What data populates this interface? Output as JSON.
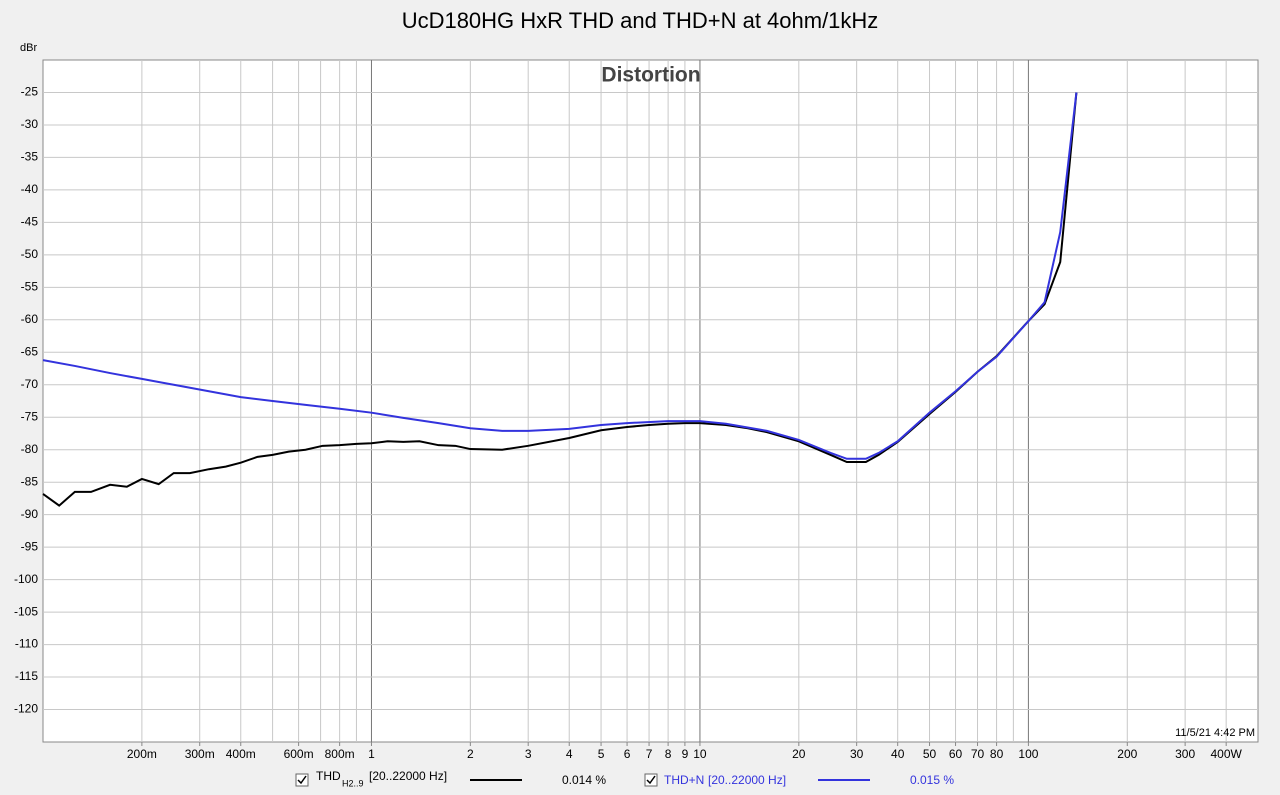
{
  "chart_data": {
    "type": "line",
    "title": "UcD180HG HxR THD and THD+N at 4ohm/1kHz",
    "plot_title": "Distortion",
    "ylabel": "dBr",
    "timestamp": "11/5/21 4:42 PM",
    "xscale": "log",
    "xlim": [
      0.1,
      500
    ],
    "ylim": [
      -125,
      -20
    ],
    "yticks": [
      -120,
      -115,
      -110,
      -105,
      -100,
      -95,
      -90,
      -85,
      -80,
      -75,
      -70,
      -65,
      -60,
      -55,
      -50,
      -45,
      -40,
      -35,
      -30,
      -25
    ],
    "xticks": [
      {
        "value": 0.2,
        "label": "200m"
      },
      {
        "value": 0.3,
        "label": "300m"
      },
      {
        "value": 0.4,
        "label": "400m"
      },
      {
        "value": 0.6,
        "label": "600m"
      },
      {
        "value": 0.8,
        "label": "800m"
      },
      1,
      2,
      3,
      4,
      5,
      6,
      7,
      8,
      9,
      10,
      20,
      30,
      40,
      50,
      60,
      70,
      80,
      100,
      200,
      300,
      {
        "value": 400,
        "label": "400W"
      }
    ],
    "xgrid": [
      0.2,
      0.3,
      0.4,
      0.5,
      0.6,
      0.7,
      0.8,
      0.9,
      1,
      2,
      3,
      4,
      5,
      6,
      7,
      8,
      9,
      10,
      20,
      30,
      40,
      50,
      60,
      70,
      80,
      90,
      100,
      200,
      300,
      400
    ],
    "grid": true,
    "series": [
      {
        "name": "THD",
        "name_sub": "H2..9",
        "band": "[20..22000 Hz]",
        "readout": "0.014 %",
        "color": "#000000",
        "x": [
          0.1,
          0.112,
          0.125,
          0.14,
          0.16,
          0.18,
          0.2,
          0.225,
          0.25,
          0.28,
          0.32,
          0.36,
          0.4,
          0.45,
          0.5,
          0.56,
          0.63,
          0.71,
          0.8,
          0.9,
          1,
          1.12,
          1.25,
          1.4,
          1.6,
          1.8,
          2,
          2.5,
          3,
          4,
          5,
          6,
          7,
          8,
          9,
          10,
          12,
          14,
          16,
          20,
          25,
          28,
          32,
          35,
          40,
          50,
          60,
          70,
          80,
          100,
          112,
          125,
          140
        ],
        "values": [
          -86.8,
          -88.6,
          -86.5,
          -86.5,
          -85.4,
          -85.7,
          -84.5,
          -85.3,
          -83.6,
          -83.6,
          -83,
          -82.6,
          -82,
          -81.1,
          -80.8,
          -80.3,
          -80,
          -79.4,
          -79.3,
          -79.1,
          -79,
          -78.7,
          -78.8,
          -78.7,
          -79.3,
          -79.4,
          -79.9,
          -80,
          -79.4,
          -78.2,
          -77,
          -76.5,
          -76.2,
          -76,
          -75.9,
          -75.9,
          -76.2,
          -76.7,
          -77.3,
          -78.7,
          -80.8,
          -81.9,
          -81.9,
          -80.8,
          -78.8,
          -74.5,
          -71.1,
          -68,
          -65.6,
          -60.2,
          -57.6,
          -51.1,
          -25
        ]
      },
      {
        "name": "THD+N",
        "band": "[20..22000 Hz]",
        "readout": "0.015 %",
        "color": "#3333dd",
        "x": [
          0.1,
          0.125,
          0.16,
          0.2,
          0.25,
          0.32,
          0.4,
          0.5,
          0.63,
          0.8,
          1,
          1.25,
          1.6,
          2,
          2.5,
          3,
          4,
          5,
          6,
          8,
          10,
          12,
          16,
          20,
          25,
          28,
          32,
          35,
          40,
          50,
          60,
          70,
          80,
          100,
          112,
          125,
          140
        ],
        "values": [
          -66.2,
          -67.1,
          -68.2,
          -69.1,
          -70,
          -71,
          -71.9,
          -72.5,
          -73.1,
          -73.7,
          -74.3,
          -75.1,
          -75.9,
          -76.7,
          -77.1,
          -77.1,
          -76.8,
          -76.2,
          -75.9,
          -75.6,
          -75.6,
          -76,
          -77.1,
          -78.5,
          -80.5,
          -81.4,
          -81.4,
          -80.5,
          -78.7,
          -74.3,
          -71,
          -68,
          -65.7,
          -60.2,
          -57.3,
          -46.5,
          -25
        ]
      }
    ]
  }
}
